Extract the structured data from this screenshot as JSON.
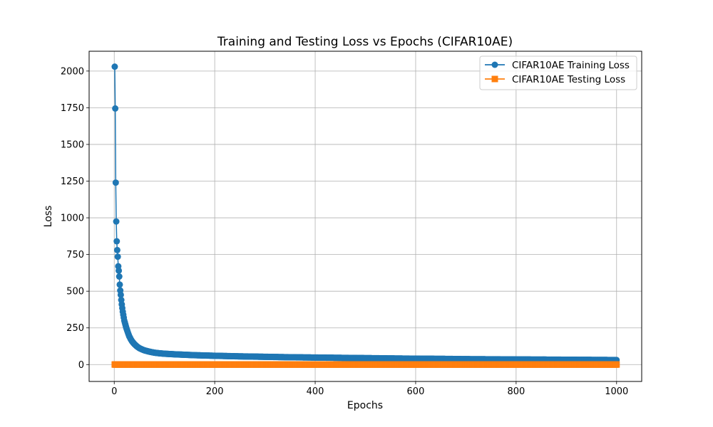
{
  "chart_data": {
    "type": "line",
    "title": "Training and Testing Loss vs Epochs (CIFAR10AE)",
    "xlabel": "Epochs",
    "ylabel": "Loss",
    "xlim": [
      -50,
      1050
    ],
    "ylim": [
      -115,
      2135
    ],
    "xticks": [
      0,
      200,
      400,
      600,
      800,
      1000
    ],
    "yticks": [
      0,
      250,
      500,
      750,
      1000,
      1250,
      1500,
      1750,
      2000
    ],
    "grid": true,
    "legend_position": "top-right",
    "series": [
      {
        "name": "CIFAR10AE Training Loss",
        "color": "#1f77b4",
        "marker": "circle",
        "x_range": [
          1,
          1000
        ],
        "x": [
          1,
          2,
          3,
          4,
          5,
          6,
          7,
          8,
          9,
          10,
          11,
          12,
          13,
          14,
          15,
          16,
          17,
          18,
          19,
          20,
          22,
          24,
          26,
          28,
          30,
          33,
          36,
          40,
          45,
          50,
          55,
          60,
          70,
          80,
          90,
          100,
          120,
          140,
          160,
          180,
          200,
          250,
          300,
          350,
          400,
          450,
          500,
          550,
          600,
          650,
          700,
          750,
          800,
          850,
          900,
          950,
          1000
        ],
        "y": [
          2030,
          1745,
          1240,
          975,
          840,
          780,
          735,
          670,
          640,
          600,
          545,
          505,
          475,
          440,
          410,
          385,
          360,
          340,
          320,
          300,
          275,
          250,
          230,
          210,
          192,
          172,
          156,
          140,
          124,
          112,
          104,
          97,
          88,
          81,
          77,
          74,
          70,
          67,
          64,
          62,
          60,
          56,
          53,
          50,
          48,
          46,
          44,
          42,
          40,
          39,
          37,
          36,
          35,
          34,
          33,
          32,
          31
        ]
      },
      {
        "name": "CIFAR10AE Testing Loss",
        "color": "#ff7f0e",
        "marker": "square",
        "x_range": [
          1,
          1000
        ],
        "x": [
          1,
          1000
        ],
        "y": [
          0.5,
          0.5
        ]
      }
    ]
  }
}
